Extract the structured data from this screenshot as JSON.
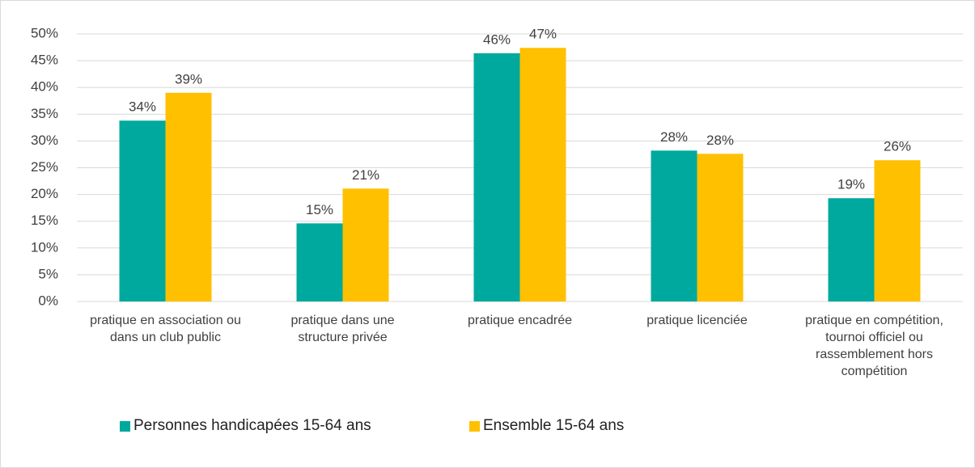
{
  "chart_data": {
    "type": "bar",
    "categories": [
      "pratique en association ou dans un club public",
      "pratique dans une structure privée",
      "pratique encadrée",
      "pratique licenciée",
      "pratique en compétition, tournoi officiel ou rassemblement hors compétition"
    ],
    "series": [
      {
        "name": "Personnes handicapées 15-64 ans",
        "color": "#00a99d",
        "values": [
          33.8,
          14.6,
          46.4,
          28.2,
          19.3
        ],
        "value_labels": [
          "34%",
          "15%",
          "46%",
          "28%",
          "19%"
        ]
      },
      {
        "name": "Ensemble 15-64 ans",
        "color": "#ffc000",
        "values": [
          39.0,
          21.1,
          47.4,
          27.6,
          26.4
        ],
        "value_labels": [
          "39%",
          "21%",
          "47%",
          "28%",
          "26%"
        ]
      }
    ],
    "ylim": [
      0,
      50
    ],
    "yticks": [
      {
        "value": 0,
        "label": "0%"
      },
      {
        "value": 5,
        "label": "5%"
      },
      {
        "value": 10,
        "label": "10%"
      },
      {
        "value": 15,
        "label": "15%"
      },
      {
        "value": 20,
        "label": "20%"
      },
      {
        "value": 25,
        "label": "25%"
      },
      {
        "value": 30,
        "label": "30%"
      },
      {
        "value": 35,
        "label": "35%"
      },
      {
        "value": 40,
        "label": "40%"
      },
      {
        "value": 45,
        "label": "45%"
      },
      {
        "value": 50,
        "label": "50%"
      }
    ],
    "grid": true,
    "legend": "bottom"
  }
}
